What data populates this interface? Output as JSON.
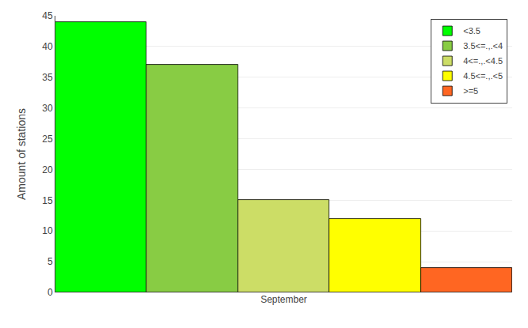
{
  "chart_data": {
    "type": "bar",
    "categories": [
      "September"
    ],
    "series": [
      {
        "name": "<3.5",
        "color": "#00FF00",
        "values": [
          44
        ]
      },
      {
        "name": "3.5<=.,.<4",
        "color": "#88CC44",
        "values": [
          37
        ]
      },
      {
        "name": "4<=.,.<4.5",
        "color": "#CCDD66",
        "values": [
          15
        ]
      },
      {
        "name": "4.5<=.,.<5",
        "color": "#FFFF00",
        "values": [
          12
        ]
      },
      {
        "name": ">=5",
        "color": "#FF6622",
        "values": [
          4
        ]
      }
    ],
    "ylabel": "Amount of stations",
    "ylim": [
      0,
      45
    ],
    "yticks": [
      0,
      5,
      10,
      15,
      20,
      25,
      30,
      35,
      40,
      45
    ],
    "grid": true,
    "legend": "upper right"
  }
}
